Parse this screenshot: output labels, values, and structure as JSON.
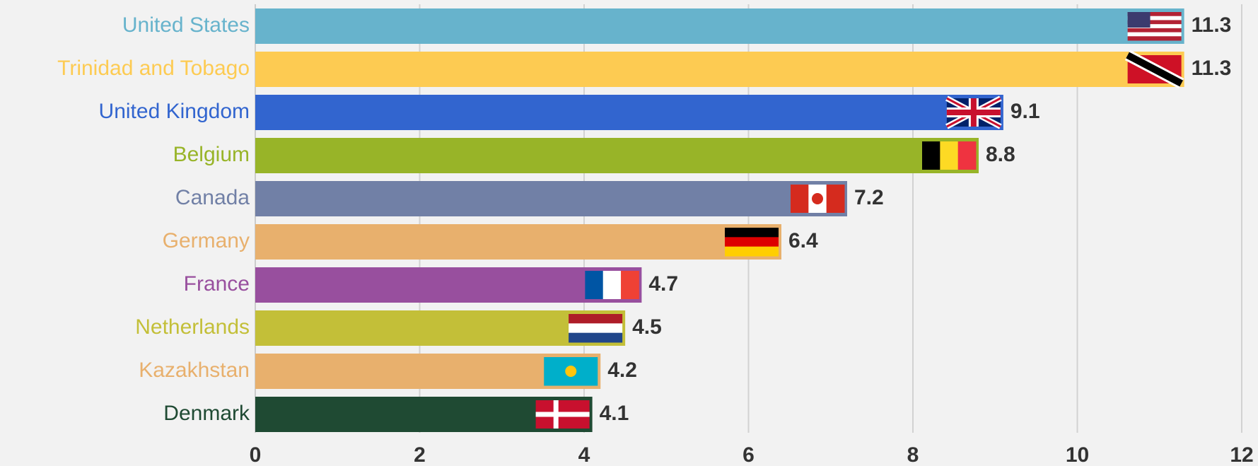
{
  "chart_data": {
    "type": "bar",
    "orientation": "horizontal",
    "categories": [
      "United States",
      "Trinidad and Tobago",
      "United Kingdom",
      "Belgium",
      "Canada",
      "Germany",
      "France",
      "Netherlands",
      "Kazakhstan",
      "Denmark"
    ],
    "values": [
      11.3,
      11.3,
      9.1,
      8.8,
      7.2,
      6.4,
      4.7,
      4.5,
      4.2,
      4.1
    ],
    "colors": [
      "#67b3cc",
      "#fdcb52",
      "#3265cf",
      "#98b428",
      "#7180a6",
      "#e8b06d",
      "#984f9e",
      "#c3bf38",
      "#e8b06d",
      "#1f4a33"
    ],
    "xlim": [
      0,
      12
    ],
    "xticks": [
      0,
      2,
      4,
      6,
      8,
      10,
      12
    ],
    "grid": true
  }
}
